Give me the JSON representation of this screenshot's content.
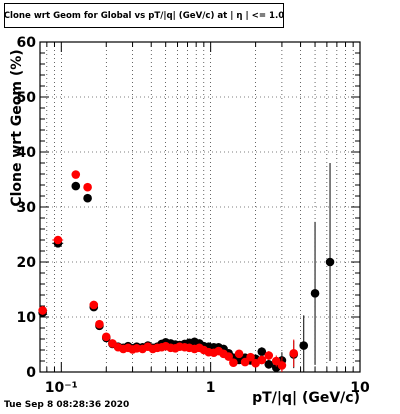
{
  "chart_data": {
    "type": "scatter",
    "title": "Clone wrt Geom for Global vs pT/|q| (GeV/c) at | η | <= 1.0",
    "xlabel": "pT/|q| (GeV/c)",
    "ylabel": "Clone wrt Geom (%)",
    "xscale": "log",
    "xlim": [
      0.072,
      10
    ],
    "ylim": [
      0,
      60
    ],
    "grid": true,
    "x_ticks": [
      {
        "v": 0.1,
        "label": "10⁻¹"
      },
      {
        "v": 1,
        "label": "1"
      },
      {
        "v": 10,
        "label": "10"
      }
    ],
    "y_ticks": [
      0,
      10,
      20,
      30,
      40,
      50,
      60
    ],
    "series": [
      {
        "color": "#000000",
        "points": [
          {
            "x": 0.075,
            "y": 10.8,
            "ex": 0.003,
            "ey": 0.8
          },
          {
            "x": 0.095,
            "y": 23.4,
            "ex": 0.008,
            "ey": 0.6
          },
          {
            "x": 0.125,
            "y": 33.8,
            "ex": 0.005,
            "ey": 0.6
          },
          {
            "x": 0.15,
            "y": 31.6,
            "ex": 0.005,
            "ey": 0.6
          },
          {
            "x": 0.165,
            "y": 11.8,
            "ex": 0.004,
            "ey": 0.5
          },
          {
            "x": 0.18,
            "y": 8.4,
            "ex": 0.004,
            "ey": 0.5
          },
          {
            "x": 0.2,
            "y": 6.2,
            "ex": 0.004,
            "ey": 0.4
          },
          {
            "x": 0.22,
            "y": 5.1,
            "ey": 0.3
          },
          {
            "x": 0.24,
            "y": 4.6,
            "ey": 0.3
          },
          {
            "x": 0.26,
            "y": 4.4,
            "ey": 0.3
          },
          {
            "x": 0.28,
            "y": 4.7,
            "ey": 0.3
          },
          {
            "x": 0.3,
            "y": 4.3,
            "ey": 0.3
          },
          {
            "x": 0.32,
            "y": 4.6,
            "ey": 0.3
          },
          {
            "x": 0.35,
            "y": 4.5,
            "ey": 0.3
          },
          {
            "x": 0.38,
            "y": 4.8,
            "ey": 0.3
          },
          {
            "x": 0.41,
            "y": 4.4,
            "ey": 0.3
          },
          {
            "x": 0.44,
            "y": 4.6,
            "ey": 0.3
          },
          {
            "x": 0.47,
            "y": 5.1,
            "ey": 0.3
          },
          {
            "x": 0.5,
            "y": 5.4,
            "ey": 0.3
          },
          {
            "x": 0.54,
            "y": 5.2,
            "ey": 0.3
          },
          {
            "x": 0.58,
            "y": 5.0,
            "ey": 0.3
          },
          {
            "x": 0.62,
            "y": 4.9,
            "ey": 0.3
          },
          {
            "x": 0.67,
            "y": 5.1,
            "ey": 0.3
          },
          {
            "x": 0.72,
            "y": 5.3,
            "ey": 0.3
          },
          {
            "x": 0.78,
            "y": 5.5,
            "ey": 0.3
          },
          {
            "x": 0.84,
            "y": 5.2,
            "ey": 0.3
          },
          {
            "x": 0.9,
            "y": 4.7,
            "ey": 0.3
          },
          {
            "x": 0.97,
            "y": 4.6,
            "ey": 0.3
          },
          {
            "x": 1.05,
            "y": 4.5,
            "ey": 0.3
          },
          {
            "x": 1.13,
            "y": 4.5,
            "ey": 0.3
          },
          {
            "x": 1.22,
            "y": 4.2,
            "ey": 0.4
          },
          {
            "x": 1.32,
            "y": 3.4,
            "ey": 0.4
          },
          {
            "x": 1.42,
            "y": 2.6,
            "ey": 0.4
          },
          {
            "x": 1.55,
            "y": 2.2,
            "ey": 0.5
          },
          {
            "x": 1.7,
            "y": 2.6,
            "ey": 0.5
          },
          {
            "x": 1.85,
            "y": 2.1,
            "ey": 0.5
          },
          {
            "x": 2.0,
            "y": 2.4,
            "ey": 0.6
          },
          {
            "x": 2.2,
            "y": 3.7,
            "ey": 0.8
          },
          {
            "x": 2.45,
            "y": 1.4,
            "ey": 0.8
          },
          {
            "x": 2.75,
            "y": 0.8,
            "ey": 1.0
          },
          {
            "x": 3.0,
            "y": 2.1,
            "ey": 1.5
          },
          {
            "x": 3.6,
            "y": 3.2,
            "ey": 2.5
          },
          {
            "x": 4.2,
            "y": 4.8,
            "ey": 5.5
          },
          {
            "x": 5.0,
            "y": 14.3,
            "ey": 13.0
          },
          {
            "x": 6.3,
            "y": 20.0,
            "ey": 18.0
          }
        ]
      },
      {
        "color": "#ff0000",
        "points": [
          {
            "x": 0.075,
            "y": 11.2,
            "ex": 0.003,
            "ey": 0.8
          },
          {
            "x": 0.095,
            "y": 24.0,
            "ex": 0.008,
            "ey": 0.6
          },
          {
            "x": 0.125,
            "y": 35.9,
            "ex": 0.005,
            "ey": 0.6
          },
          {
            "x": 0.15,
            "y": 33.6,
            "ex": 0.005,
            "ey": 0.6
          },
          {
            "x": 0.165,
            "y": 12.2,
            "ex": 0.004,
            "ey": 0.5
          },
          {
            "x": 0.18,
            "y": 8.7,
            "ex": 0.004,
            "ey": 0.5
          },
          {
            "x": 0.2,
            "y": 6.4,
            "ex": 0.004,
            "ey": 0.4
          },
          {
            "x": 0.22,
            "y": 5.2,
            "ey": 0.3
          },
          {
            "x": 0.24,
            "y": 4.5,
            "ey": 0.3
          },
          {
            "x": 0.26,
            "y": 4.2,
            "ey": 0.3
          },
          {
            "x": 0.28,
            "y": 4.4,
            "ey": 0.3
          },
          {
            "x": 0.3,
            "y": 4.1,
            "ey": 0.3
          },
          {
            "x": 0.32,
            "y": 4.3,
            "ey": 0.3
          },
          {
            "x": 0.35,
            "y": 4.2,
            "ey": 0.3
          },
          {
            "x": 0.38,
            "y": 4.6,
            "ey": 0.3
          },
          {
            "x": 0.41,
            "y": 4.2,
            "ey": 0.3
          },
          {
            "x": 0.44,
            "y": 4.4,
            "ey": 0.3
          },
          {
            "x": 0.47,
            "y": 4.5,
            "ey": 0.3
          },
          {
            "x": 0.5,
            "y": 4.7,
            "ey": 0.3
          },
          {
            "x": 0.54,
            "y": 4.4,
            "ey": 0.3
          },
          {
            "x": 0.58,
            "y": 4.3,
            "ey": 0.3
          },
          {
            "x": 0.62,
            "y": 4.6,
            "ey": 0.3
          },
          {
            "x": 0.67,
            "y": 4.5,
            "ey": 0.3
          },
          {
            "x": 0.72,
            "y": 4.4,
            "ey": 0.3
          },
          {
            "x": 0.78,
            "y": 4.2,
            "ey": 0.3
          },
          {
            "x": 0.84,
            "y": 4.4,
            "ey": 0.3
          },
          {
            "x": 0.9,
            "y": 4.0,
            "ey": 0.3
          },
          {
            "x": 0.97,
            "y": 3.6,
            "ey": 0.3
          },
          {
            "x": 1.05,
            "y": 3.5,
            "ey": 0.3
          },
          {
            "x": 1.13,
            "y": 3.8,
            "ey": 0.3
          },
          {
            "x": 1.22,
            "y": 3.3,
            "ey": 0.4
          },
          {
            "x": 1.32,
            "y": 2.8,
            "ey": 0.4
          },
          {
            "x": 1.42,
            "y": 1.7,
            "ey": 0.4
          },
          {
            "x": 1.55,
            "y": 3.3,
            "ey": 0.5
          },
          {
            "x": 1.7,
            "y": 1.8,
            "ey": 0.5
          },
          {
            "x": 1.85,
            "y": 2.7,
            "ey": 0.5
          },
          {
            "x": 2.0,
            "y": 1.6,
            "ey": 0.6
          },
          {
            "x": 2.2,
            "y": 2.2,
            "ey": 0.8
          },
          {
            "x": 2.45,
            "y": 3.0,
            "ey": 0.8
          },
          {
            "x": 2.75,
            "y": 2.0,
            "ey": 1.0
          },
          {
            "x": 3.0,
            "y": 1.2,
            "ey": 1.5
          },
          {
            "x": 3.6,
            "y": 3.4,
            "ey": 2.5
          }
        ]
      }
    ]
  },
  "footer": {
    "timestamp": "Tue Sep  8 08:28:36 2020"
  }
}
